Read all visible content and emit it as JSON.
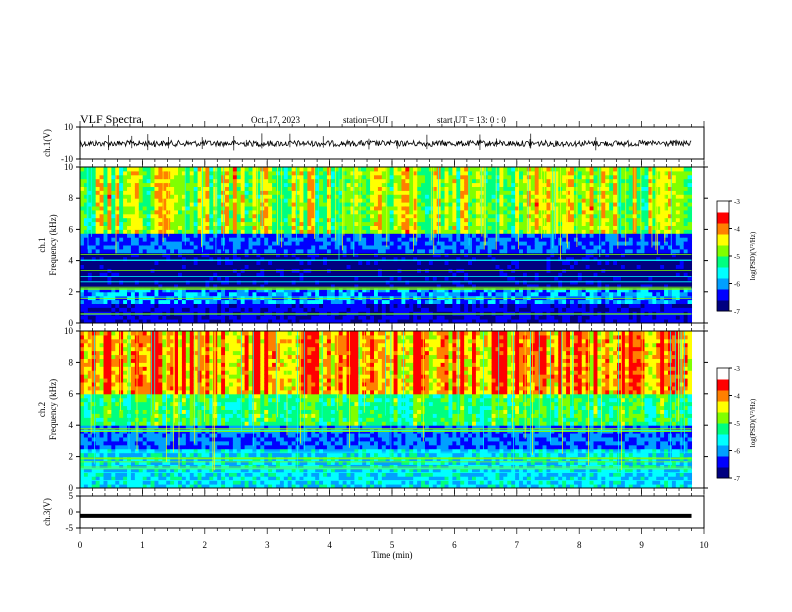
{
  "header": {
    "title": "VLF Spectra",
    "date": "Oct. 17, 2023",
    "station": "station=OUI",
    "start": "start  UT =   13: 0  : 0"
  },
  "colors": {
    "colormap": [
      "#000080",
      "#0000ff",
      "#00a0ff",
      "#00ffff",
      "#00ff80",
      "#80ff00",
      "#ffff00",
      "#ff8000",
      "#ff0000",
      "#ffffff"
    ],
    "frame": "#000000",
    "trace": "#000000"
  },
  "chart_data": [
    {
      "type": "line",
      "panel": "ch1",
      "ylabel": "ch.1(V)",
      "ylim": [
        -10,
        10
      ],
      "yticks": [
        "10",
        "-10"
      ],
      "xlim": [
        0,
        10
      ],
      "series": [
        {
          "x": [
            0,
            9.8
          ],
          "y": [
            -0.3,
            -0.3
          ]
        }
      ]
    },
    {
      "type": "heatmap",
      "panel": "spec1",
      "ylabel": "ch.1\nFrequency (kHz)",
      "ylim": [
        0,
        10
      ],
      "yticks": [
        "0",
        "2",
        "4",
        "6",
        "8",
        "10"
      ],
      "xlim": [
        0,
        10
      ],
      "data_xmax": 9.8,
      "colorbar": {
        "label": "log(PSD)(V²/Hz)",
        "range": [
          -7,
          -3
        ],
        "ticks": [
          "-3",
          "-4",
          "-5",
          "-6",
          "-7"
        ]
      }
    },
    {
      "type": "heatmap",
      "panel": "spec2",
      "ylabel": "ch.2\nFrequency (kHz)",
      "ylim": [
        0,
        10
      ],
      "yticks": [
        "0",
        "2",
        "4",
        "6",
        "8",
        "10"
      ],
      "xlim": [
        0,
        10
      ],
      "data_xmax": 9.8,
      "colorbar": {
        "label": "log(PSD)(V²/Hz)",
        "range": [
          -7,
          -3
        ],
        "ticks": [
          "-3",
          "-4",
          "-5",
          "-6",
          "-7"
        ]
      }
    },
    {
      "type": "line",
      "panel": "ch3",
      "ylabel": "ch.3(V)",
      "ylim": [
        -5,
        5
      ],
      "yticks": [
        "5",
        "0",
        "-5"
      ],
      "xlim": [
        0,
        10
      ],
      "xlabel": "Time (min)",
      "xticks": [
        "0",
        "1",
        "2",
        "3",
        "4",
        "5",
        "6",
        "7",
        "8",
        "9",
        "10"
      ],
      "series": [
        {
          "x": [
            0,
            9.8
          ],
          "y": [
            -1.2,
            -1.2
          ]
        }
      ]
    }
  ]
}
